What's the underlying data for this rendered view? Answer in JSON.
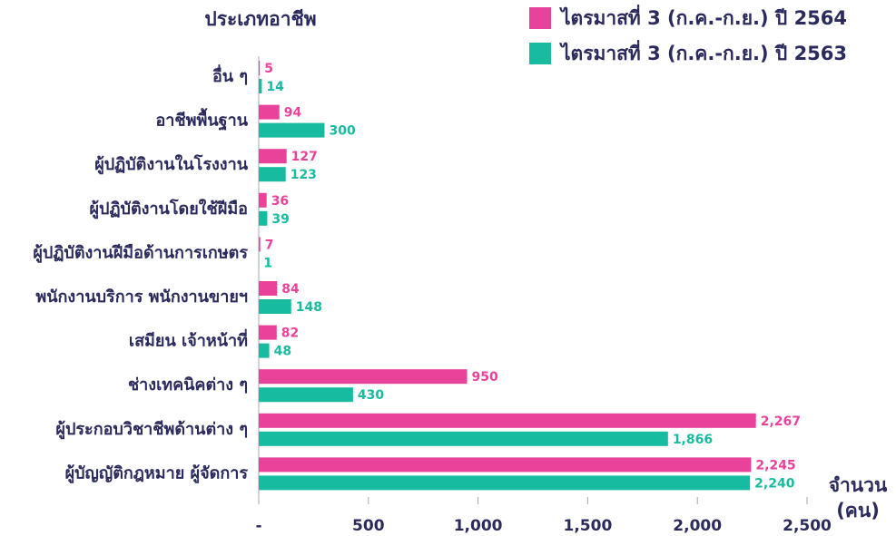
{
  "chart_data": {
    "type": "hbar",
    "ylabel": "ประเภทอาชีพ",
    "xlabel": [
      "จำนวน",
      "(คน)"
    ],
    "categories": [
      "อื่น ๆ",
      "อาชีพพื้นฐาน",
      "ผู้ปฏิบัติงานในโรงงาน",
      "ผู้ปฏิบัติงานโดยใช้ฝีมือ",
      "ผู้ปฏิบัติงานฝีมือด้านการเกษตร",
      "พนักงานบริการ พนักงานขายฯ",
      "เสมียน เจ้าหน้าที่",
      "ช่างเทคนิคต่าง ๆ",
      "ผู้ประกอบวิชาชีพด้านต่าง ๆ",
      "ผู้บัญญัติกฎหมาย ผู้จัดการ"
    ],
    "series": [
      {
        "name": "ไตรมาสที่ 3 (ก.ค.-ก.ย.) ปี 2564",
        "color": "#e8429a",
        "values": [
          5,
          94,
          127,
          36,
          7,
          84,
          82,
          950,
          2267,
          2245
        ],
        "value_labels": [
          "5",
          "94",
          "127",
          "36",
          "7",
          "84",
          "82",
          "950",
          "2,267",
          "2,245"
        ]
      },
      {
        "name": "ไตรมาสที่ 3 (ก.ค.-ก.ย.) ปี 2563",
        "color": "#17bb9f",
        "values": [
          14,
          300,
          123,
          39,
          1,
          148,
          48,
          430,
          1866,
          2240
        ],
        "value_labels": [
          "14",
          "300",
          "123",
          "39",
          "1",
          "148",
          "48",
          "430",
          "1,866",
          "2,240"
        ]
      }
    ],
    "xlim": [
      0,
      2500
    ],
    "xticks": [
      {
        "value": 0,
        "label": "-"
      },
      500,
      {
        "value": 1000,
        "label": "1,000"
      },
      {
        "value": 1500,
        "label": "1,500"
      },
      {
        "value": 2000,
        "label": "2,000"
      },
      {
        "value": 2500,
        "label": "2,500"
      }
    ]
  }
}
